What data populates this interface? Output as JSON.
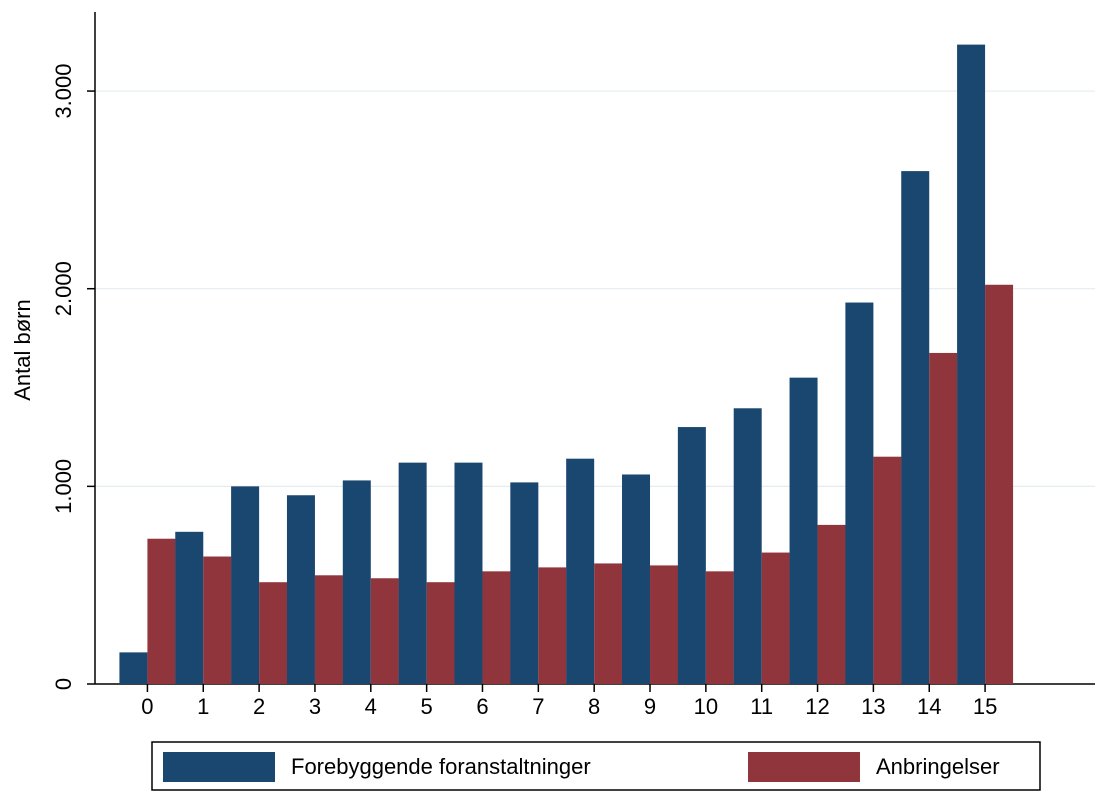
{
  "chart_data": {
    "type": "bar",
    "y_label": "Antal børn",
    "categories": [
      "0",
      "1",
      "2",
      "3",
      "4",
      "5",
      "6",
      "7",
      "8",
      "9",
      "10",
      "11",
      "12",
      "13",
      "14",
      "15"
    ],
    "series": [
      {
        "name": "Forebyggende foranstaltninger",
        "color": "#1a476f",
        "values": [
          160,
          770,
          1000,
          955,
          1030,
          1120,
          1120,
          1020,
          1140,
          1060,
          1300,
          1395,
          1550,
          1930,
          2595,
          3235
        ]
      },
      {
        "name": "Anbringelser",
        "color": "#90353b",
        "values": [
          735,
          645,
          515,
          550,
          535,
          515,
          570,
          590,
          610,
          600,
          570,
          665,
          805,
          1150,
          1675,
          2020
        ]
      }
    ],
    "ylim": [
      0,
      3400
    ],
    "yticks": [
      0,
      {
        "value": 1000,
        "label": "1.000"
      },
      {
        "value": 2000,
        "label": "2.000"
      },
      {
        "value": 3000,
        "label": "3.000"
      }
    ],
    "grid": true,
    "legend": "bottom"
  }
}
